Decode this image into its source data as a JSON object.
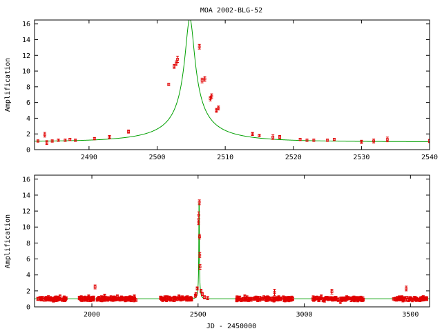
{
  "figure": {
    "title": "MOA 2002-BLG-52",
    "xlabel": "JD - 2450000",
    "ylabel": "Amplification"
  },
  "colors": {
    "model": "#00a000",
    "data": "#e00000",
    "frame": "#000000"
  },
  "chart_data": [
    {
      "type": "scatter",
      "title": "MOA 2002-BLG-52",
      "xlabel": "",
      "ylabel": "Amplification",
      "xlim": [
        2482,
        2540
      ],
      "ylim": [
        0,
        16.5
      ],
      "xticks": [
        2490,
        2500,
        2510,
        2520,
        2530,
        2540
      ],
      "yticks": [
        0,
        2,
        4,
        6,
        8,
        10,
        12,
        14,
        16
      ],
      "grid": false,
      "model": {
        "t0": 2504.8,
        "tE": 12,
        "u0": 0.06
      },
      "series": [
        {
          "x": [
            2482.5,
            2483.5,
            2483.8,
            2484.6,
            2485.5,
            2486.5,
            2487.2,
            2488.0,
            2490.8,
            2493.0,
            2495.8,
            2501.7,
            2502.5,
            2502.8,
            2503.0,
            2506.2,
            2506.6,
            2507.0,
            2507.8,
            2508.0,
            2508.7,
            2509.0,
            2514.0,
            2515.0,
            2517.0,
            2518.0,
            2521.0,
            2522.0,
            2523.0,
            2525.0,
            2526.0,
            2530.0,
            2531.8,
            2533.8,
            2540.0
          ],
          "y": [
            1.1,
            1.9,
            0.9,
            1.1,
            1.2,
            1.2,
            1.3,
            1.2,
            1.4,
            1.6,
            2.3,
            8.3,
            10.6,
            11.0,
            11.5,
            13.1,
            8.8,
            9.0,
            6.5,
            6.8,
            5.0,
            5.3,
            2.0,
            1.8,
            1.6,
            1.6,
            1.3,
            1.2,
            1.2,
            1.2,
            1.3,
            1.0,
            1.1,
            1.3,
            1.1
          ],
          "err": [
            0.15,
            0.3,
            0.25,
            0.15,
            0.15,
            0.15,
            0.15,
            0.15,
            0.15,
            0.2,
            0.2,
            0.15,
            0.25,
            0.3,
            0.4,
            0.3,
            0.3,
            0.3,
            0.3,
            0.3,
            0.25,
            0.25,
            0.2,
            0.15,
            0.3,
            0.2,
            0.15,
            0.15,
            0.15,
            0.15,
            0.15,
            0.2,
            0.25,
            0.3,
            0.2
          ]
        }
      ]
    },
    {
      "type": "scatter",
      "title": "",
      "xlabel": "JD - 2450000",
      "ylabel": "Amplification",
      "xlim": [
        1730,
        3590
      ],
      "ylim": [
        0,
        16.5
      ],
      "xticks": [
        2000,
        2500,
        3000,
        3500
      ],
      "yticks": [
        0,
        2,
        4,
        6,
        8,
        10,
        12,
        14,
        16
      ],
      "grid": false,
      "model": {
        "t0": 2504.8,
        "tE": 12,
        "u0": 0.06
      },
      "seasons": [
        [
          1755,
          1885
        ],
        [
          1940,
          2210
        ],
        [
          2320,
          2470
        ],
        [
          2680,
          2950
        ],
        [
          3040,
          3280
        ],
        [
          3420,
          3580
        ]
      ],
      "series": [
        {
          "x": [
            1745,
            1760,
            1775,
            1790,
            1805,
            1820,
            1835,
            1850,
            1870,
            1950,
            1970,
            1985,
            2000,
            2015,
            2030,
            2045,
            2060,
            2075,
            2090,
            2105,
            2120,
            2140,
            2160,
            2180,
            2200,
            2330,
            2350,
            2370,
            2390,
            2410,
            2430,
            2450,
            2470,
            2487,
            2490,
            2496,
            2502,
            2503,
            2506,
            2507,
            2508,
            2509,
            2514,
            2520,
            2530,
            2545,
            2690,
            2720,
            2750,
            2780,
            2810,
            2840,
            2860,
            2880,
            2910,
            2940,
            3050,
            3080,
            3110,
            3130,
            3150,
            3170,
            3200,
            3230,
            3260,
            3430,
            3460,
            3480,
            3500,
            3530,
            3560
          ],
          "y": [
            1.0,
            1.1,
            0.9,
            1.0,
            1.1,
            0.8,
            1.0,
            1.3,
            1.1,
            1.2,
            1.0,
            1.3,
            1.1,
            2.5,
            1.0,
            1.2,
            1.4,
            0.9,
            1.2,
            1.0,
            1.3,
            1.1,
            0.9,
            1.2,
            1.3,
            1.0,
            1.2,
            0.9,
            1.1,
            1.3,
            1.0,
            1.2,
            1.0,
            1.4,
            1.6,
            2.3,
            10.6,
            11.5,
            13.1,
            8.8,
            6.5,
            5.0,
            2.0,
            1.6,
            1.2,
            1.1,
            1.0,
            1.3,
            0.9,
            1.1,
            1.2,
            1.0,
            1.8,
            1.2,
            1.0,
            1.1,
            1.0,
            1.3,
            1.1,
            1.9,
            1.1,
            0.7,
            1.2,
            1.0,
            1.1,
            1.0,
            1.2,
            2.3,
            1.1,
            1.0,
            1.2
          ],
          "err": [
            0.2,
            0.2,
            0.2,
            0.2,
            0.2,
            0.2,
            0.2,
            0.2,
            0.2,
            0.2,
            0.2,
            0.2,
            0.2,
            0.25,
            0.2,
            0.2,
            0.2,
            0.2,
            0.2,
            0.2,
            0.2,
            0.2,
            0.2,
            0.2,
            0.2,
            0.2,
            0.2,
            0.2,
            0.2,
            0.2,
            0.2,
            0.2,
            0.2,
            0.2,
            0.2,
            0.2,
            0.3,
            0.4,
            0.3,
            0.3,
            0.3,
            0.3,
            0.2,
            0.2,
            0.2,
            0.2,
            0.2,
            0.2,
            0.2,
            0.2,
            0.2,
            0.2,
            0.4,
            0.2,
            0.2,
            0.2,
            0.2,
            0.2,
            0.2,
            0.3,
            0.2,
            0.3,
            0.2,
            0.2,
            0.2,
            0.2,
            0.2,
            0.3,
            0.2,
            0.2,
            0.2
          ]
        }
      ]
    }
  ]
}
